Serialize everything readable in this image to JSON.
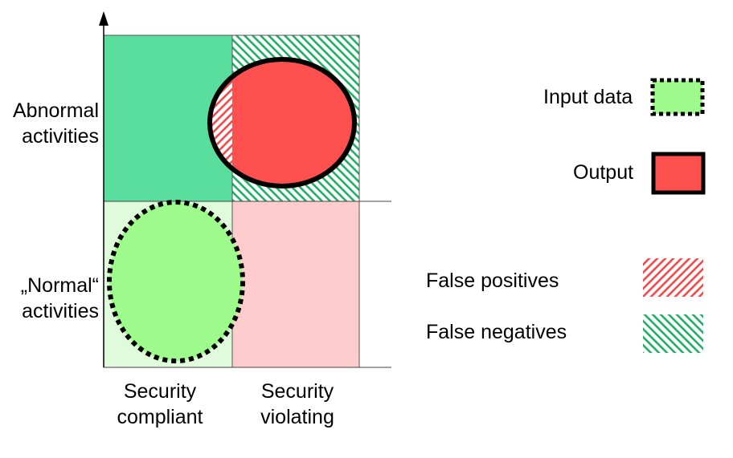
{
  "rows": {
    "abnormal": [
      "Abnormal",
      "activities"
    ],
    "normal": [
      "„Normal“",
      "activities"
    ]
  },
  "columns": {
    "compliant": [
      "Security",
      "compliant"
    ],
    "violating": [
      "Security",
      "violating"
    ]
  },
  "legend": {
    "input_data": "Input data",
    "output": "Output",
    "false_positives": "False positives",
    "false_negatives": "False negatives"
  },
  "colors": {
    "quadrant_abnormal_compliant": "#5ADE9E",
    "quadrant_normal_compliant": "#E0FBDC",
    "quadrant_normal_violating": "#FECCCC",
    "quadrant_abnormal_violating": "#FFFFFF",
    "input_fill": "#9EFC8C",
    "output_fill": "#FF5050",
    "false_positive_hatch": "#F44A4A",
    "false_negative_hatch": "#22B066"
  }
}
